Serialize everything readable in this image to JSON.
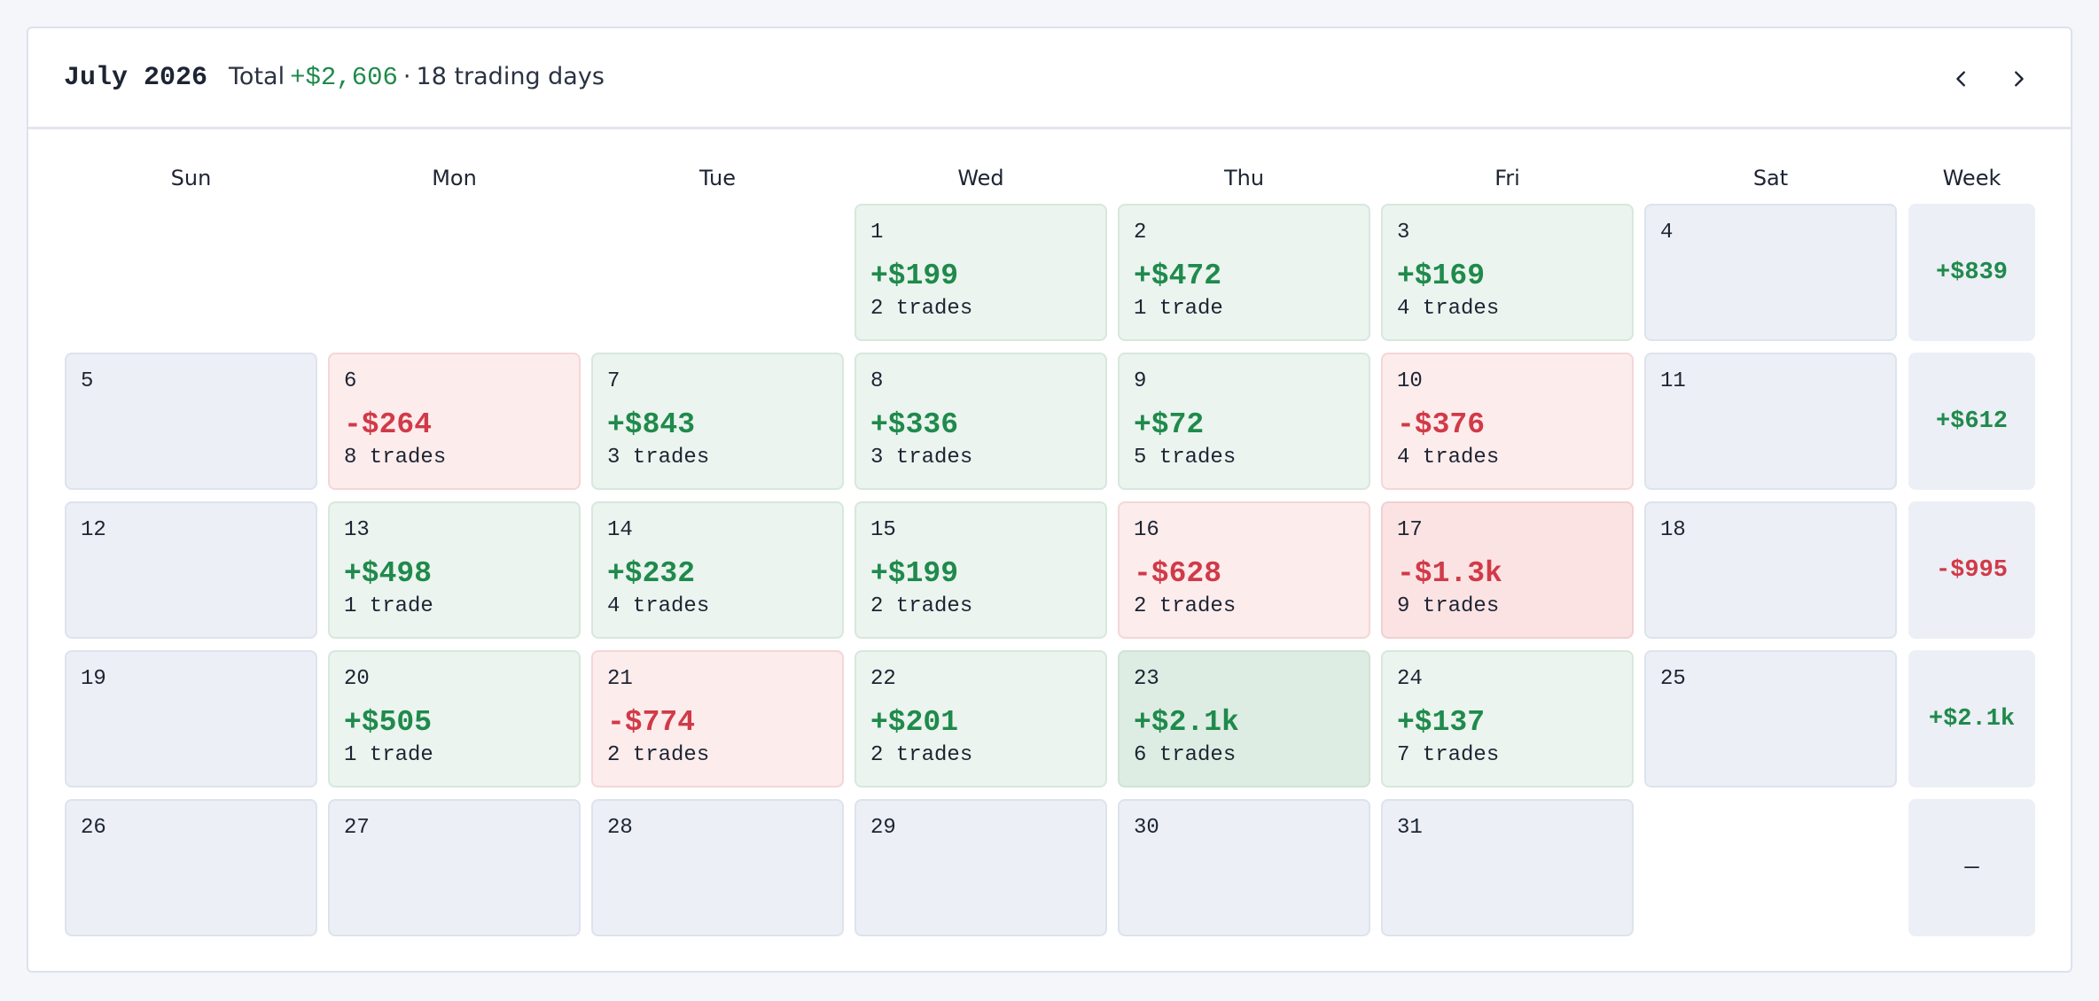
{
  "header": {
    "month": "July 2026",
    "total_label": "Total",
    "total_value": "+$2,606",
    "separator": "·",
    "trading_days": "18 trading days"
  },
  "nav": {
    "prev_icon": "chevron-left-icon",
    "next_icon": "chevron-right-icon"
  },
  "weekdays": [
    "Sun",
    "Mon",
    "Tue",
    "Wed",
    "Thu",
    "Fri",
    "Sat",
    "Week"
  ],
  "colors": {
    "positive": "#1f8a4c",
    "negative": "#d13a48",
    "positive_bg": "#ebf4ee",
    "negative_bg": "#fdecec",
    "empty_bg": "#eceff5"
  },
  "weeks": [
    {
      "days": [
        null,
        null,
        null,
        {
          "day": "1",
          "pnl": "+$199",
          "trades": "2 trades",
          "tone": "pos"
        },
        {
          "day": "2",
          "pnl": "+$472",
          "trades": "1 trade",
          "tone": "pos"
        },
        {
          "day": "3",
          "pnl": "+$169",
          "trades": "4 trades",
          "tone": "pos"
        },
        {
          "day": "4"
        }
      ],
      "total": "+$839",
      "tone": "pos"
    },
    {
      "days": [
        {
          "day": "5"
        },
        {
          "day": "6",
          "pnl": "-$264",
          "trades": "8 trades",
          "tone": "neg"
        },
        {
          "day": "7",
          "pnl": "+$843",
          "trades": "3 trades",
          "tone": "pos"
        },
        {
          "day": "8",
          "pnl": "+$336",
          "trades": "3 trades",
          "tone": "pos"
        },
        {
          "day": "9",
          "pnl": "+$72",
          "trades": "5 trades",
          "tone": "pos"
        },
        {
          "day": "10",
          "pnl": "-$376",
          "trades": "4 trades",
          "tone": "neg"
        },
        {
          "day": "11"
        }
      ],
      "total": "+$612",
      "tone": "pos"
    },
    {
      "days": [
        {
          "day": "12"
        },
        {
          "day": "13",
          "pnl": "+$498",
          "trades": "1 trade",
          "tone": "pos"
        },
        {
          "day": "14",
          "pnl": "+$232",
          "trades": "4 trades",
          "tone": "pos"
        },
        {
          "day": "15",
          "pnl": "+$199",
          "trades": "2 trades",
          "tone": "pos"
        },
        {
          "day": "16",
          "pnl": "-$628",
          "trades": "2 trades",
          "tone": "neg"
        },
        {
          "day": "17",
          "pnl": "-$1.3k",
          "trades": "9 trades",
          "tone": "neg-strong"
        },
        {
          "day": "18"
        }
      ],
      "total": "-$995",
      "tone": "neg"
    },
    {
      "days": [
        {
          "day": "19"
        },
        {
          "day": "20",
          "pnl": "+$505",
          "trades": "1 trade",
          "tone": "pos"
        },
        {
          "day": "21",
          "pnl": "-$774",
          "trades": "2 trades",
          "tone": "neg"
        },
        {
          "day": "22",
          "pnl": "+$201",
          "trades": "2 trades",
          "tone": "pos"
        },
        {
          "day": "23",
          "pnl": "+$2.1k",
          "trades": "6 trades",
          "tone": "pos-strong"
        },
        {
          "day": "24",
          "pnl": "+$137",
          "trades": "7 trades",
          "tone": "pos"
        },
        {
          "day": "25"
        }
      ],
      "total": "+$2.1k",
      "tone": "pos"
    },
    {
      "days": [
        {
          "day": "26"
        },
        {
          "day": "27"
        },
        {
          "day": "28"
        },
        {
          "day": "29"
        },
        {
          "day": "30"
        },
        {
          "day": "31"
        },
        null
      ],
      "total": "—",
      "tone": "neutral"
    }
  ]
}
